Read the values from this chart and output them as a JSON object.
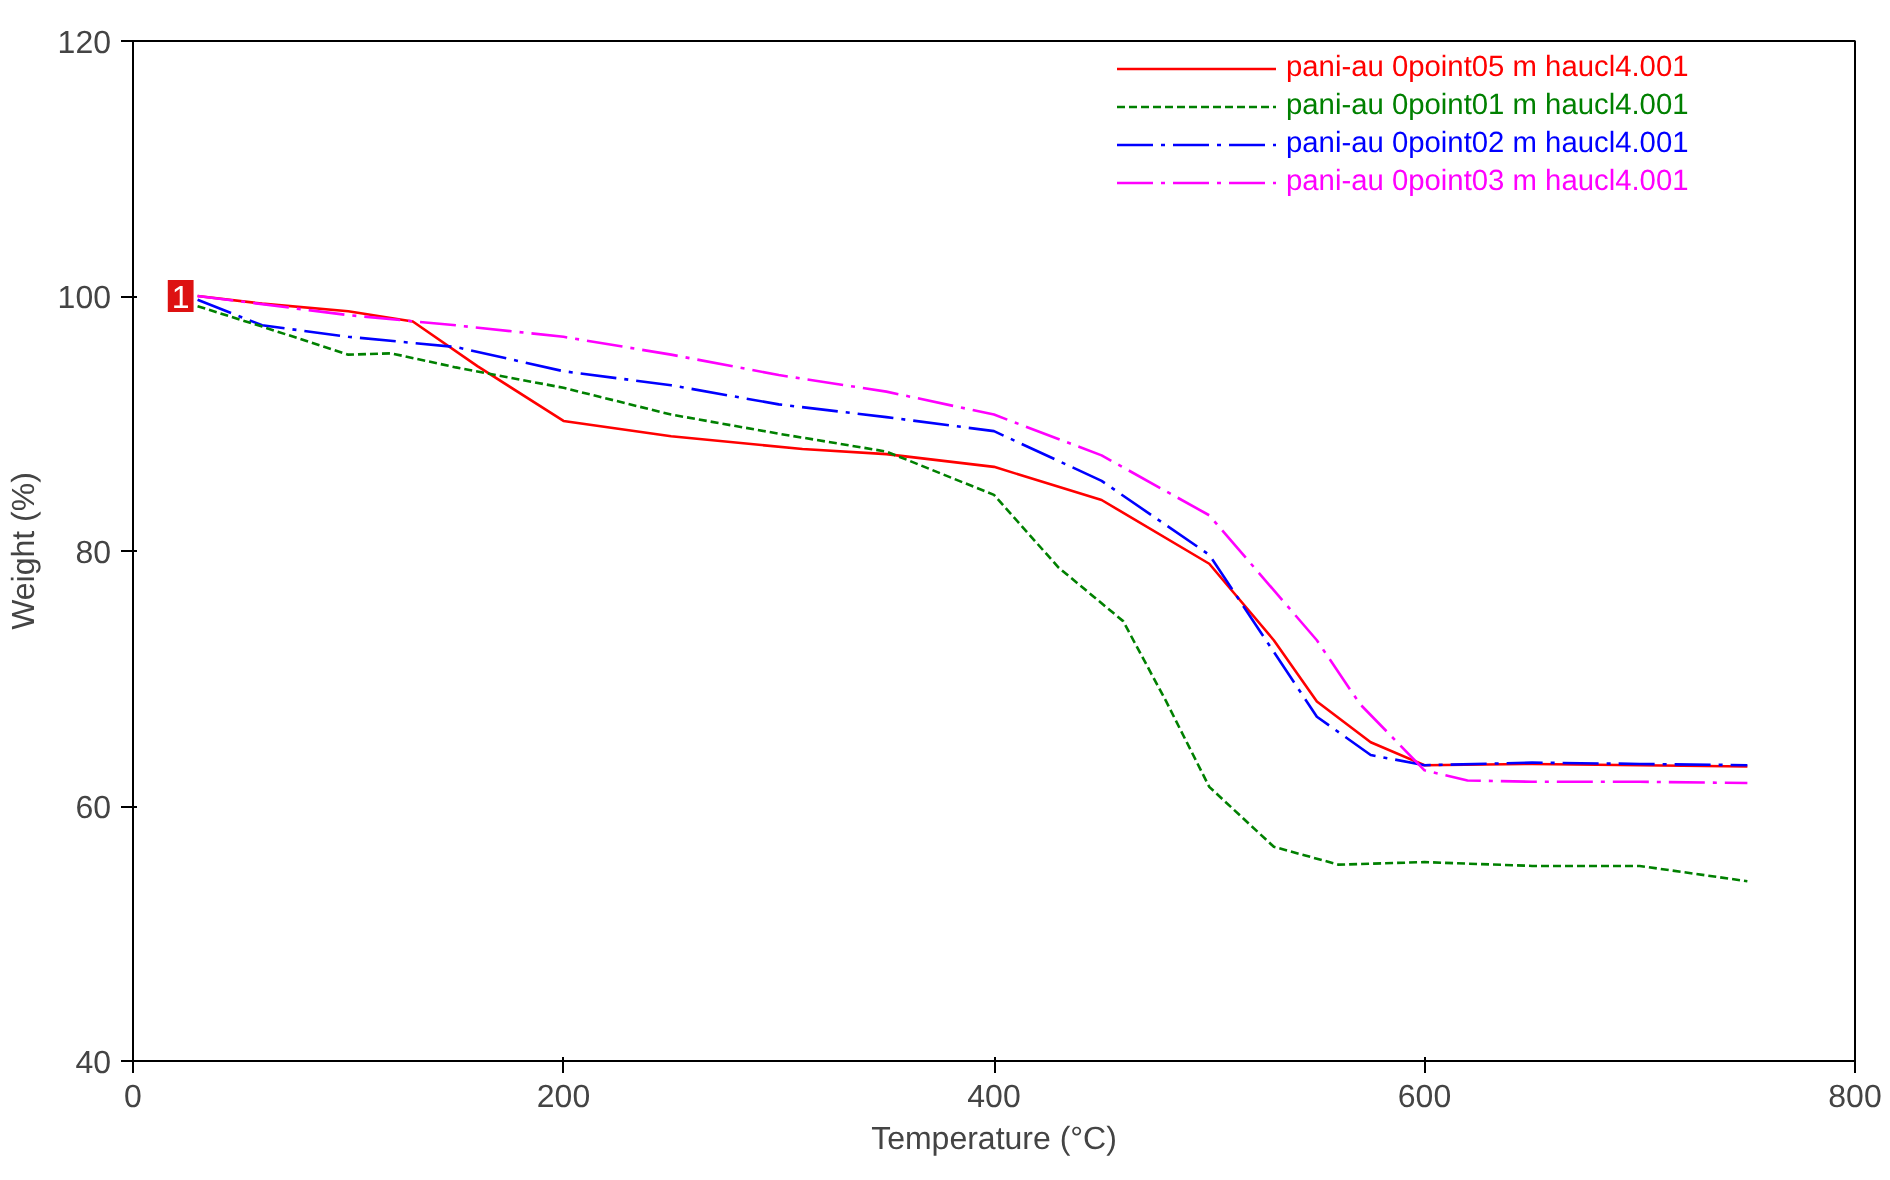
{
  "chart_data": {
    "type": "line",
    "xlabel": "Temperature (°C)",
    "ylabel": "Weight (%)",
    "xlim": [
      0,
      800
    ],
    "ylim": [
      40,
      120
    ],
    "xticks": [
      0,
      200,
      400,
      600,
      800
    ],
    "yticks": [
      40,
      60,
      80,
      100,
      120
    ],
    "grid": false,
    "legend": "top right",
    "marker": "none",
    "annotations": [
      {
        "text": "1",
        "x": 30,
        "y": 100
      }
    ],
    "series": [
      {
        "name": "pani-au 0point05 m haucl4.001",
        "color": "#ff0000",
        "line_style": "solid",
        "x": [
          30,
          60,
          100,
          130,
          160,
          200,
          250,
          311,
          350,
          400,
          450,
          500,
          530,
          550,
          575,
          600,
          650,
          700,
          750
        ],
        "values": [
          100,
          99.4,
          98.8,
          98,
          94.5,
          90.2,
          89,
          88,
          87.6,
          86.6,
          84,
          79,
          73,
          68.2,
          65,
          63.2,
          63.3,
          63.2,
          63.1
        ]
      },
      {
        "name": "pani-au 0point01 m haucl4.001",
        "color": "#008000",
        "line_style": "dashed",
        "x": [
          30,
          60,
          100,
          120,
          150,
          200,
          250,
          300,
          350,
          400,
          430,
          460,
          480,
          500,
          530,
          560,
          600,
          650,
          700,
          750
        ],
        "values": [
          99.2,
          97.6,
          95.4,
          95.5,
          94.4,
          92.8,
          90.7,
          89.2,
          87.8,
          84.4,
          78.7,
          74.5,
          68.2,
          61.5,
          56.8,
          55.4,
          55.6,
          55.3,
          55.3,
          54.1
        ]
      },
      {
        "name": "pani-au 0point02 m haucl4.001",
        "color": "#0000ff",
        "line_style": "dashdot",
        "x": [
          30,
          60,
          100,
          150,
          200,
          250,
          300,
          350,
          400,
          450,
          500,
          550,
          575,
          600,
          650,
          700,
          750
        ],
        "values": [
          99.7,
          97.7,
          96.8,
          96,
          94.1,
          93,
          91.5,
          90.5,
          89.4,
          85.5,
          79.7,
          67,
          64,
          63.2,
          63.4,
          63.3,
          63.2
        ]
      },
      {
        "name": "pani-au 0point03 m haucl4.001",
        "color": "#ff00ff",
        "line_style": "dashdot",
        "x": [
          30,
          100,
          150,
          200,
          250,
          300,
          350,
          400,
          450,
          500,
          550,
          570,
          600,
          620,
          650,
          700,
          750
        ],
        "values": [
          100,
          98.5,
          97.7,
          96.8,
          95.4,
          93.8,
          92.5,
          90.7,
          87.5,
          82.8,
          73,
          68,
          62.8,
          62,
          61.9,
          61.9,
          61.8
        ]
      }
    ]
  }
}
